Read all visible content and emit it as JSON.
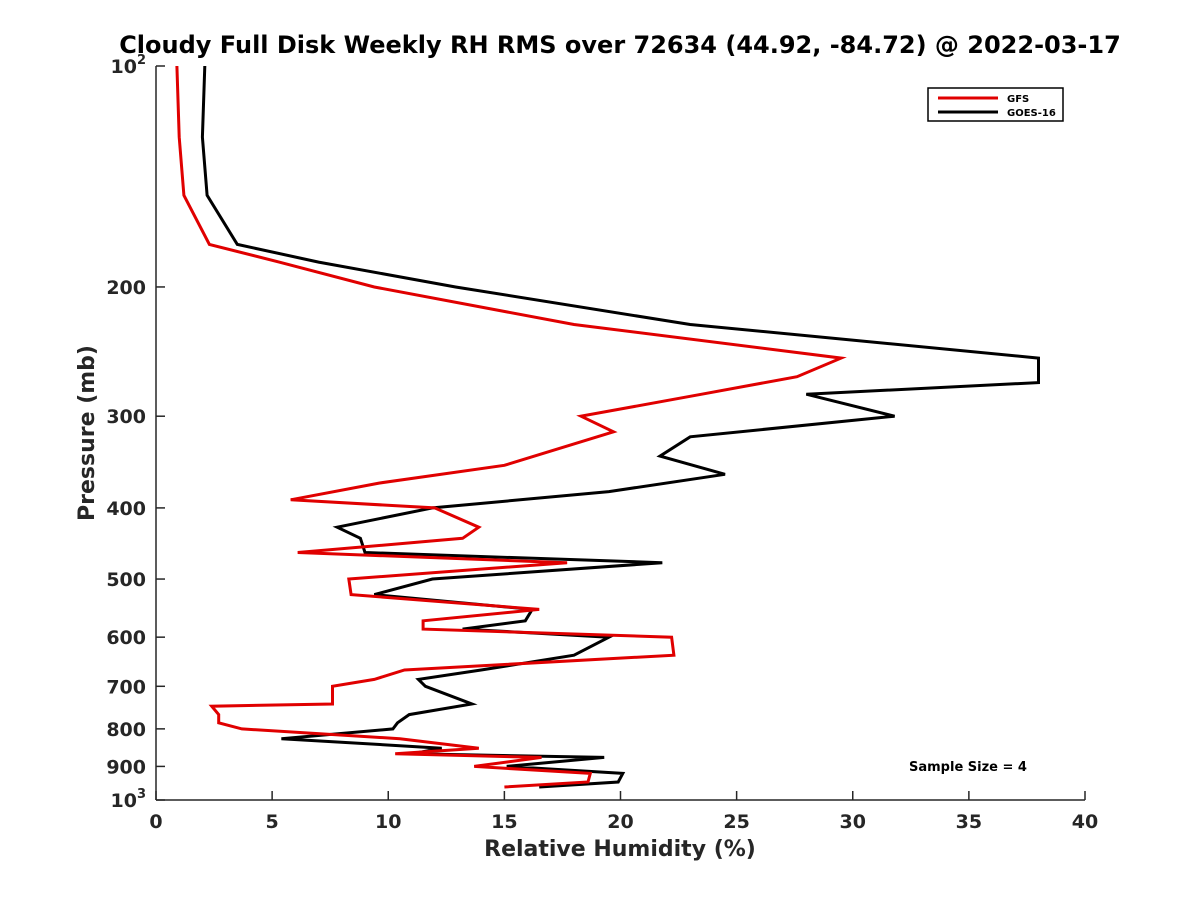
{
  "chart_data": {
    "type": "line",
    "title": "Cloudy Full Disk Weekly RH RMS over 72634 (44.92, -84.72) @ 2022-03-17",
    "xlabel": "Relative Humidity (%)",
    "ylabel": "Pressure (mb)",
    "xlim": [
      0,
      40
    ],
    "ylim": [
      100,
      1000
    ],
    "y_scale": "log",
    "y_reversed": true,
    "grid": false,
    "legend_position": "top-right",
    "x_ticks": [
      "0",
      "5",
      "10",
      "15",
      "20",
      "25",
      "30",
      "35",
      "40"
    ],
    "y_ticks": [
      {
        "value": 100,
        "base": "10",
        "exp": "2"
      },
      {
        "value": 200,
        "label": "200"
      },
      {
        "value": 300,
        "label": "300"
      },
      {
        "value": 400,
        "label": "400"
      },
      {
        "value": 500,
        "label": "500"
      },
      {
        "value": 600,
        "label": "600"
      },
      {
        "value": 700,
        "label": "700"
      },
      {
        "value": 800,
        "label": "800"
      },
      {
        "value": 900,
        "label": "900"
      },
      {
        "value": 1000,
        "base": "10",
        "exp": "3"
      }
    ],
    "series": [
      {
        "name": "GFS",
        "color": "#e00000",
        "points": [
          [
            0.9,
            100
          ],
          [
            1.0,
            125
          ],
          [
            1.2,
            150
          ],
          [
            2.3,
            175
          ],
          [
            5.3,
            185
          ],
          [
            9.4,
            200
          ],
          [
            18.0,
            225
          ],
          [
            29.5,
            250
          ],
          [
            27.6,
            265
          ],
          [
            23.5,
            280
          ],
          [
            18.3,
            300
          ],
          [
            19.7,
            315
          ],
          [
            15.0,
            350
          ],
          [
            9.6,
            370
          ],
          [
            5.8,
            390
          ],
          [
            12.0,
            400
          ],
          [
            13.9,
            425
          ],
          [
            13.2,
            440
          ],
          [
            6.1,
            460
          ],
          [
            17.7,
            475
          ],
          [
            8.3,
            500
          ],
          [
            8.4,
            525
          ],
          [
            16.5,
            550
          ],
          [
            11.5,
            570
          ],
          [
            11.5,
            585
          ],
          [
            22.2,
            600
          ],
          [
            22.3,
            635
          ],
          [
            10.7,
            665
          ],
          [
            9.4,
            685
          ],
          [
            7.6,
            700
          ],
          [
            7.6,
            740
          ],
          [
            2.4,
            745
          ],
          [
            2.7,
            765
          ],
          [
            2.7,
            785
          ],
          [
            3.7,
            800
          ],
          [
            10.5,
            825
          ],
          [
            13.9,
            850
          ],
          [
            10.3,
            865
          ],
          [
            16.6,
            875
          ],
          [
            13.7,
            900
          ],
          [
            18.7,
            920
          ],
          [
            18.6,
            945
          ],
          [
            15.0,
            960
          ]
        ]
      },
      {
        "name": "GOES-16",
        "color": "#000000",
        "points": [
          [
            2.1,
            100
          ],
          [
            2.0,
            125
          ],
          [
            2.2,
            150
          ],
          [
            3.5,
            175
          ],
          [
            7.0,
            185
          ],
          [
            12.9,
            200
          ],
          [
            23.0,
            225
          ],
          [
            38.0,
            250
          ],
          [
            38.0,
            270
          ],
          [
            28.0,
            280
          ],
          [
            31.8,
            300
          ],
          [
            23.0,
            320
          ],
          [
            21.7,
            340
          ],
          [
            24.5,
            360
          ],
          [
            19.5,
            380
          ],
          [
            11.9,
            400
          ],
          [
            7.8,
            425
          ],
          [
            8.8,
            440
          ],
          [
            9.0,
            460
          ],
          [
            21.8,
            475
          ],
          [
            11.9,
            500
          ],
          [
            9.4,
            525
          ],
          [
            16.2,
            550
          ],
          [
            15.9,
            570
          ],
          [
            13.2,
            585
          ],
          [
            19.5,
            600
          ],
          [
            18.0,
            635
          ],
          [
            14.0,
            665
          ],
          [
            11.3,
            685
          ],
          [
            11.6,
            700
          ],
          [
            13.6,
            740
          ],
          [
            10.9,
            765
          ],
          [
            10.4,
            785
          ],
          [
            10.2,
            800
          ],
          [
            5.4,
            825
          ],
          [
            12.3,
            850
          ],
          [
            11.0,
            865
          ],
          [
            19.3,
            875
          ],
          [
            15.1,
            900
          ],
          [
            20.1,
            920
          ],
          [
            19.9,
            945
          ],
          [
            16.5,
            960
          ]
        ]
      }
    ],
    "annotations": [
      "Sample Size = 4"
    ]
  }
}
